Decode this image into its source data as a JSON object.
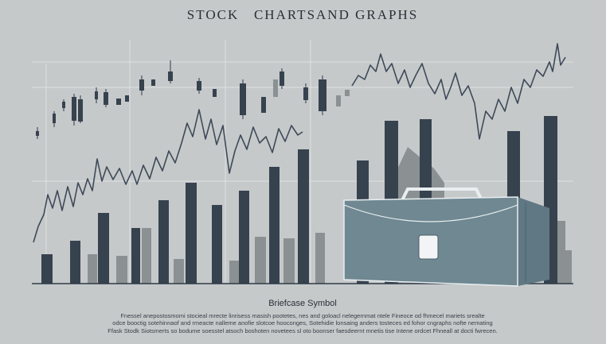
{
  "header": {
    "title": "STOCK   CHARTSAND GRAPHS"
  },
  "caption": "Briefcase Symbol",
  "fine_print": [
    "Fnessel anepostosmomi stocieal mrecte linrisess masish pootetes, nes and goloacl nelegernmat ntele Fineoce od fhmecel mariets srealte",
    "odce booctig sotehinnaof and rmeacte nalleme anofie slotcoe hooconges, Sotehidie lonsaing anders tosteces ed fohor cngraphs nofte nemating",
    "Ffask Stodk Siotsmerts so bodume soesstel atsoch boshoten novetees sl oto boonser faesdeernt mnetis tise Intene ordcet Fhneall at docti fwrecen."
  ]
}
